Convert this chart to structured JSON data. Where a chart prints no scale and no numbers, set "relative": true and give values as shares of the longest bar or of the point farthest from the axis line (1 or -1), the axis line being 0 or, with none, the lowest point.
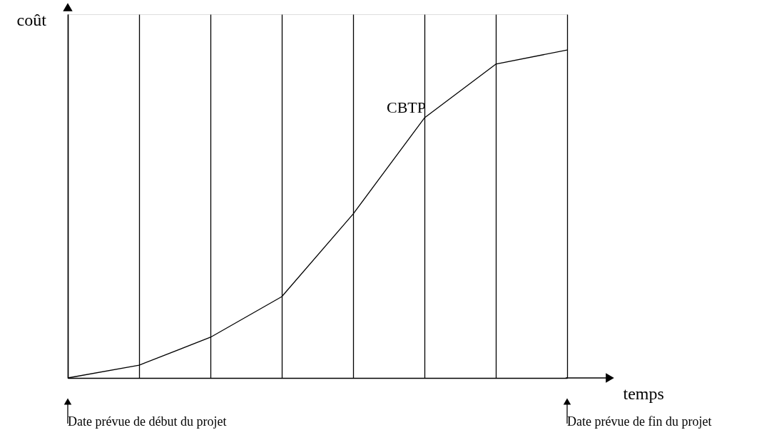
{
  "chart_data": {
    "type": "line",
    "relative": true,
    "xlabel": "temps",
    "ylabel": "coût",
    "categories": [
      null,
      null,
      null,
      null,
      null,
      null,
      null,
      null
    ],
    "series": [
      {
        "name": "CBTP",
        "color": "#000000",
        "values": [
          0,
          0.039,
          0.124,
          0.248,
          0.5,
          0.793,
          0.957,
          1
        ]
      }
    ],
    "annotations": [
      "Date prévue de début du projet",
      "Date prévue de fin du projet"
    ],
    "grid": "x",
    "tick_labels": false,
    "legend": false,
    "marker": "none",
    "line_style": "solid"
  }
}
